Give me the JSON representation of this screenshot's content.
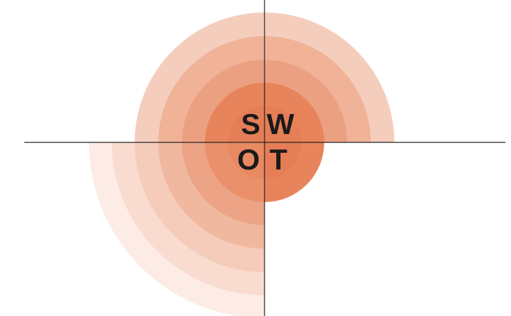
{
  "quadrants": [
    {
      "label": "S"
    },
    {
      "label": "W"
    },
    {
      "label": "O"
    },
    {
      "label": "T"
    }
  ]
}
